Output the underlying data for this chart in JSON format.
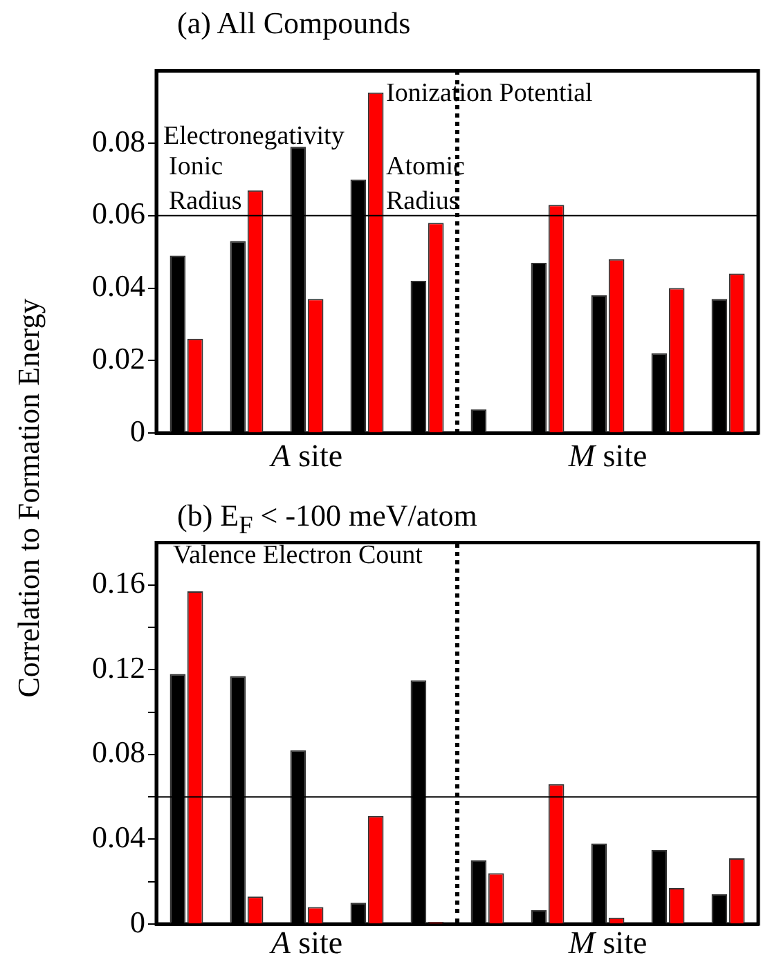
{
  "chart_data": [
    {
      "type": "bar",
      "title": "(a) All Compounds",
      "ylabel": "Correlation to Formation Energy",
      "categories": [
        null,
        null,
        null,
        null,
        null,
        null,
        null,
        null,
        null,
        null
      ],
      "series": [
        {
          "color": "#000000",
          "values": [
            0.049,
            0.053,
            0.079,
            0.07,
            0.042,
            0.0065,
            0.047,
            0.038,
            0.022,
            0.037
          ]
        },
        {
          "color": "#ff0000",
          "values": [
            0.026,
            0.067,
            0.037,
            0.094,
            0.058,
            0,
            0.063,
            0.048,
            0.04,
            0.044
          ]
        }
      ],
      "ylim": [
        0,
        0.1
      ],
      "yticks": [
        0,
        0.02,
        0.04,
        0.06,
        0.08
      ],
      "ref_lines": [
        {
          "axis": "y",
          "value": 0.06,
          "color": "#000000"
        }
      ],
      "annotations": [
        "Electronegativity",
        "Ionic Radius",
        "Ionization Potential",
        "Atomic Radius",
        "A site",
        "M site"
      ],
      "grid": false,
      "legend": false,
      "tick_labels": "y"
    },
    {
      "type": "bar",
      "title": "(b) E$_{F}$ < -100 meV/atom",
      "categories": [
        null,
        null,
        null,
        null,
        null,
        null,
        null,
        null,
        null,
        null
      ],
      "series": [
        {
          "color": "#000000",
          "values": [
            0.118,
            0.117,
            0.082,
            0.01,
            0.115,
            0.03,
            0.0065,
            0.038,
            0.035,
            0.014
          ]
        },
        {
          "color": "#ff0000",
          "values": [
            0.157,
            0.013,
            0.008,
            0.051,
            0.001,
            0.024,
            0.066,
            0.003,
            0.017,
            0.031
          ]
        }
      ],
      "ylim": [
        0,
        0.18
      ],
      "yticks": [
        0,
        {
          "value": 0.02,
          "label": null
        },
        0.04,
        {
          "value": 0.06,
          "label": null
        },
        0.08,
        {
          "value": 0.1,
          "label": null
        },
        0.12,
        {
          "value": 0.14,
          "label": null
        },
        0.16
      ],
      "ref_lines": [
        {
          "axis": "y",
          "value": 0.06,
          "color": "#000000"
        }
      ],
      "annotations": [
        "Valence Electron Count",
        "A site",
        "M site"
      ],
      "grid": false,
      "legend": false,
      "tick_labels": "y"
    }
  ]
}
